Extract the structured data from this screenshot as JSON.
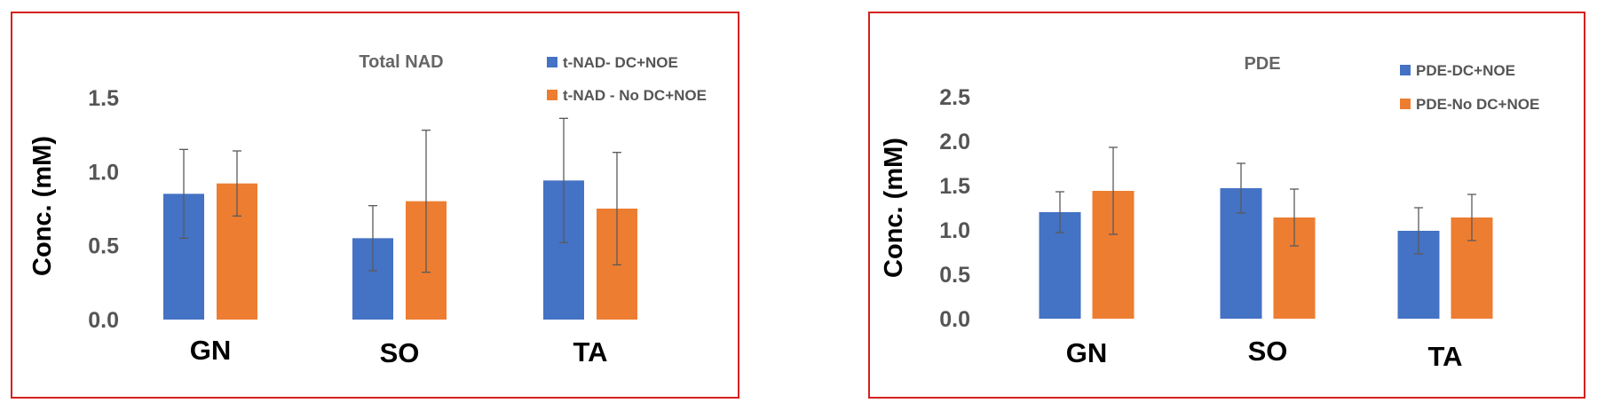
{
  "colors": {
    "series1": "#4472c4",
    "series2": "#ed7d31",
    "border": "#d62020",
    "errorbar": "#5a5a5a"
  },
  "chart_data": [
    {
      "type": "bar",
      "title": "Total NAD",
      "ylabel": "Conc. (mM)",
      "xlabel": "",
      "categories": [
        "GN",
        "SO",
        "TA"
      ],
      "ylim": [
        0,
        1.5
      ],
      "yticks": [
        "0.0",
        "0.5",
        "1.0",
        "1.5"
      ],
      "series": [
        {
          "name": "t-NAD- DC+NOE",
          "values": [
            0.85,
            0.55,
            0.94
          ],
          "errors": [
            0.3,
            0.22,
            0.42
          ]
        },
        {
          "name": "t-NAD - No DC+NOE",
          "values": [
            0.92,
            0.8,
            0.75
          ],
          "errors": [
            0.22,
            0.48,
            0.38
          ]
        }
      ],
      "legend": "top-right",
      "grid": false
    },
    {
      "type": "bar",
      "title": "PDE",
      "ylabel": "Conc. (mM)",
      "xlabel": "",
      "categories": [
        "GN",
        "SO",
        "TA"
      ],
      "ylim": [
        0,
        2.5
      ],
      "yticks": [
        "0.0",
        "0.5",
        "1.0",
        "1.5",
        "2.0",
        "2.5"
      ],
      "series": [
        {
          "name": "PDE-DC+NOE",
          "values": [
            1.2,
            1.47,
            0.99
          ],
          "errors": [
            0.23,
            0.28,
            0.26
          ]
        },
        {
          "name": "PDE-No DC+NOE",
          "values": [
            1.44,
            1.14,
            1.14
          ],
          "errors": [
            0.49,
            0.32,
            0.26
          ]
        }
      ],
      "legend": "top-right",
      "grid": false
    }
  ]
}
